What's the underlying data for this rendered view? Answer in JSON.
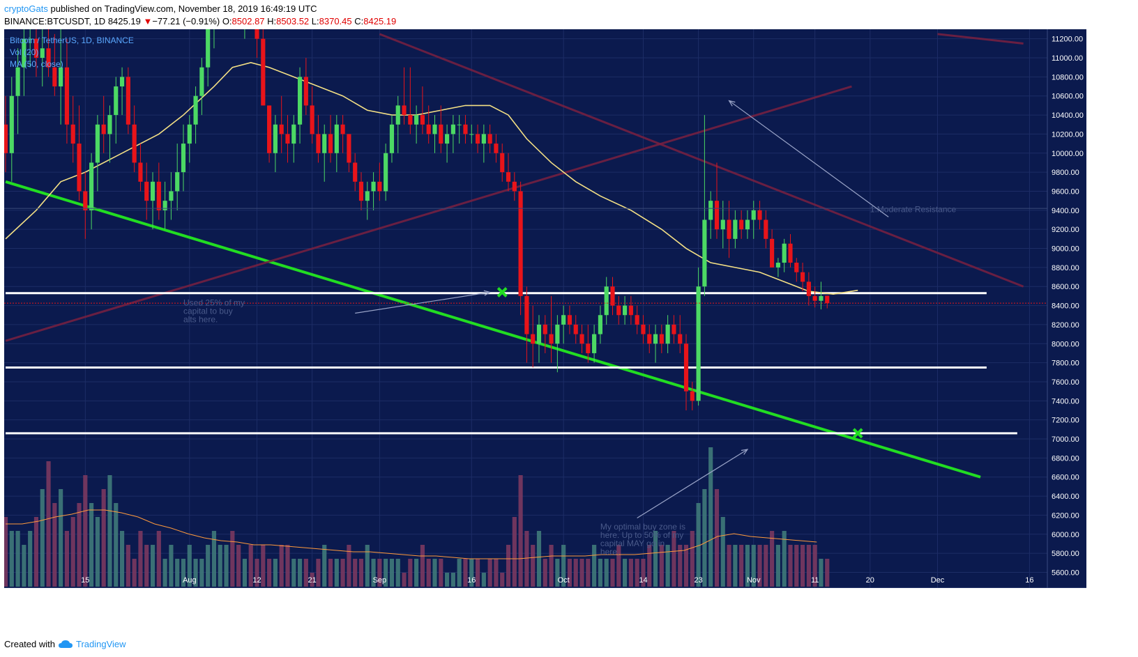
{
  "header": {
    "author": "cryptoGats",
    "published": "published on TradingView.com, November 18, 2019 16:49:19 UTC",
    "symbol": "BINANCE:BTCUSDT, 1D",
    "last": "8425.19",
    "change_arrow": "▼",
    "change": "−77.21 (−0.91%)",
    "o_label": "O:",
    "o_value": "8502.87",
    "h_label": "H:",
    "h_value": "8503.52",
    "l_label": "L:",
    "l_value": "8370.45",
    "c_label": "C:",
    "c_value": "8425.19"
  },
  "legend": {
    "line1": "Bitcoin / TetherUS, 1D, BINANCE",
    "line2": "Vol (20)",
    "line3": "MA (50, close)"
  },
  "footer": {
    "created": "Created with",
    "brand": "TradingView"
  },
  "colors": {
    "background": "#0b1a4e",
    "grid": "#1d2d66",
    "up": "#4cd964",
    "down": "#e8141a",
    "ma": "#f4e085",
    "support_line": "#ffffff",
    "trendline": "#22dd22",
    "resistance_channel": "#7a2040",
    "price_badge": "#e8141a"
  },
  "icons": [
    "tradingview-cloud-icon",
    "cross-marker-icon",
    "arrow-icon"
  ],
  "chart_data": {
    "type": "candlestick",
    "title": "Bitcoin / TetherUS, 1D, BINANCE",
    "y_axis_ticks": [
      5600,
      5800,
      6000,
      6200,
      6400,
      6600,
      6800,
      7000,
      7200,
      7400,
      7600,
      7800,
      8000,
      8200,
      8400,
      8600,
      8800,
      9000,
      9200,
      9400,
      9600,
      9800,
      10000,
      10200,
      10400,
      10600,
      10800,
      11000,
      11200
    ],
    "y_tick_labels": [
      "5600.00",
      "5800.00",
      "6000.00",
      "6200.00",
      "6400.00",
      "6600.00",
      "6800.00",
      "7000.00",
      "7200.00",
      "7400.00",
      "7600.00",
      "7800.00",
      "8000.00",
      "8200.00",
      "8400.00",
      "8600.00",
      "8800.00",
      "9000.00",
      "9200.00",
      "9400.00",
      "9600.00",
      "9800.00",
      "10000.00",
      "10200.00",
      "10400.00",
      "10600.00",
      "10800.00",
      "11000.00",
      "11200.00"
    ],
    "ylim": [
      5450,
      11300
    ],
    "x_axis_labels": [
      {
        "label": "15",
        "day": 14
      },
      {
        "label": "Aug",
        "day": 31
      },
      {
        "label": "12",
        "day": 42
      },
      {
        "label": "21",
        "day": 51
      },
      {
        "label": "Sep",
        "day": 62
      },
      {
        "label": "16",
        "day": 77
      },
      {
        "label": "Oct",
        "day": 92
      },
      {
        "label": "14",
        "day": 105
      },
      {
        "label": "23",
        "day": 114
      },
      {
        "label": "Nov",
        "day": 123
      },
      {
        "label": "11",
        "day": 133
      },
      {
        "label": "20",
        "day": 142
      },
      {
        "label": "Dec",
        "day": 153
      },
      {
        "label": "16",
        "day": 168
      }
    ],
    "xlim": [
      1,
      170
    ],
    "current_price": 8425.19,
    "current_price_label": "8425.19",
    "candles_ohlc": [
      [
        10300,
        10600,
        9800,
        10000
      ],
      [
        10000,
        10800,
        9700,
        10600
      ],
      [
        10600,
        11100,
        10200,
        10900
      ],
      [
        10900,
        11300,
        10600,
        11200
      ],
      [
        11200,
        11300,
        10900,
        11200
      ],
      [
        11200,
        11300,
        10800,
        11000
      ],
      [
        11000,
        11300,
        10700,
        11100
      ],
      [
        11100,
        11300,
        10800,
        10900
      ],
      [
        10900,
        11250,
        10600,
        10700
      ],
      [
        10700,
        11300,
        10300,
        10900
      ],
      [
        10900,
        11200,
        10100,
        10300
      ],
      [
        10300,
        10600,
        9900,
        10100
      ],
      [
        10100,
        10500,
        9500,
        9600
      ],
      [
        9600,
        9800,
        9100,
        9400
      ],
      [
        9400,
        10000,
        9200,
        9900
      ],
      [
        9900,
        10400,
        9600,
        10300
      ],
      [
        10300,
        10600,
        10000,
        10200
      ],
      [
        10200,
        10500,
        9900,
        10400
      ],
      [
        10400,
        10800,
        10100,
        10700
      ],
      [
        10700,
        10900,
        10400,
        10800
      ],
      [
        10800,
        10900,
        10200,
        10300
      ],
      [
        10300,
        10500,
        9800,
        9900
      ],
      [
        9900,
        10100,
        9600,
        9700
      ],
      [
        9700,
        9900,
        9300,
        9500
      ],
      [
        9500,
        9800,
        9200,
        9700
      ],
      [
        9700,
        9900,
        9300,
        9400
      ],
      [
        9400,
        9700,
        9200,
        9500
      ],
      [
        9500,
        9800,
        9300,
        9600
      ],
      [
        9600,
        10100,
        9400,
        9800
      ],
      [
        9800,
        10300,
        9600,
        10100
      ],
      [
        10100,
        10400,
        9900,
        10300
      ],
      [
        10300,
        10700,
        10100,
        10600
      ],
      [
        10600,
        11000,
        10400,
        10900
      ],
      [
        10900,
        11400,
        10700,
        11300
      ],
      [
        11300,
        11900,
        11100,
        11700
      ],
      [
        11700,
        12000,
        11400,
        11800
      ],
      [
        11800,
        12300,
        11500,
        12100
      ],
      [
        12100,
        12300,
        11600,
        11800
      ],
      [
        11800,
        12000,
        11300,
        11500
      ],
      [
        11500,
        11900,
        11200,
        11700
      ],
      [
        11700,
        11900,
        11300,
        11400
      ],
      [
        11400,
        11600,
        11000,
        11200
      ],
      [
        11200,
        11300,
        10500,
        10500
      ],
      [
        10500,
        10500,
        9900,
        10000
      ],
      [
        10000,
        10400,
        9800,
        10300
      ],
      [
        10300,
        10600,
        10000,
        10200
      ],
      [
        10200,
        10400,
        9900,
        10100
      ],
      [
        10100,
        10400,
        9900,
        10300
      ],
      [
        10300,
        10900,
        10100,
        10800
      ],
      [
        10800,
        11000,
        10400,
        10500
      ],
      [
        10500,
        10700,
        10100,
        10200
      ],
      [
        10200,
        10400,
        9900,
        10000
      ],
      [
        10000,
        10300,
        9700,
        10200
      ],
      [
        10200,
        10400,
        9900,
        10000
      ],
      [
        10000,
        10400,
        9800,
        10300
      ],
      [
        10300,
        10400,
        10000,
        10200
      ],
      [
        10200,
        10200,
        9800,
        9900
      ],
      [
        9900,
        10000,
        9600,
        9700
      ],
      [
        9700,
        9800,
        9400,
        9500
      ],
      [
        9500,
        9700,
        9300,
        9600
      ],
      [
        9600,
        9800,
        9400,
        9700
      ],
      [
        9700,
        9900,
        9500,
        9600
      ],
      [
        9600,
        10100,
        9500,
        10000
      ],
      [
        10000,
        10400,
        9900,
        10300
      ],
      [
        10300,
        10600,
        10000,
        10500
      ],
      [
        10500,
        10900,
        10300,
        10400
      ],
      [
        10400,
        10900,
        10200,
        10300
      ],
      [
        10300,
        10500,
        10100,
        10400
      ],
      [
        10400,
        10700,
        10200,
        10300
      ],
      [
        10300,
        10500,
        10100,
        10200
      ],
      [
        10200,
        10400,
        10000,
        10300
      ],
      [
        10300,
        10500,
        10000,
        10100
      ],
      [
        10100,
        10300,
        9900,
        10200
      ],
      [
        10200,
        10400,
        10000,
        10300
      ],
      [
        10300,
        10400,
        10100,
        10300
      ],
      [
        10300,
        10400,
        10100,
        10200
      ],
      [
        10200,
        10300,
        10100,
        10200
      ],
      [
        10200,
        10300,
        10000,
        10100
      ],
      [
        10100,
        10300,
        9900,
        10200
      ],
      [
        10200,
        10300,
        10000,
        10100
      ],
      [
        10100,
        10200,
        9900,
        10000
      ],
      [
        10000,
        10100,
        9700,
        9800
      ],
      [
        9800,
        10000,
        9600,
        9700
      ],
      [
        9700,
        9800,
        9500,
        9600
      ],
      [
        9600,
        9700,
        8300,
        8500
      ],
      [
        8500,
        8600,
        7800,
        8100
      ],
      [
        8100,
        8400,
        7750,
        8000
      ],
      [
        8000,
        8300,
        7800,
        8200
      ],
      [
        8200,
        8300,
        7900,
        8100
      ],
      [
        8100,
        8500,
        7800,
        8000
      ],
      [
        8000,
        8300,
        7700,
        8200
      ],
      [
        8200,
        8400,
        8000,
        8300
      ],
      [
        8300,
        8400,
        8100,
        8200
      ],
      [
        8200,
        8300,
        8000,
        8100
      ],
      [
        8100,
        8200,
        7900,
        8000
      ],
      [
        8000,
        8200,
        7800,
        7900
      ],
      [
        7900,
        8200,
        7800,
        8100
      ],
      [
        8100,
        8400,
        8000,
        8300
      ],
      [
        8300,
        8700,
        8200,
        8600
      ],
      [
        8600,
        8700,
        8300,
        8400
      ],
      [
        8400,
        8500,
        8200,
        8300
      ],
      [
        8300,
        8500,
        8200,
        8400
      ],
      [
        8400,
        8500,
        8200,
        8300
      ],
      [
        8300,
        8400,
        8100,
        8200
      ],
      [
        8200,
        8300,
        8000,
        8100
      ],
      [
        8100,
        8200,
        7900,
        8000
      ],
      [
        8000,
        8200,
        7800,
        8100
      ],
      [
        8100,
        8200,
        7900,
        8000
      ],
      [
        8000,
        8300,
        7900,
        8200
      ],
      [
        8200,
        8300,
        8000,
        8100
      ],
      [
        8100,
        8300,
        7900,
        8000
      ],
      [
        8000,
        8100,
        7300,
        7500
      ],
      [
        7500,
        7600,
        7300,
        7400
      ],
      [
        7400,
        8800,
        7350,
        8600
      ],
      [
        8600,
        10400,
        8500,
        9300
      ],
      [
        9300,
        9600,
        9100,
        9500
      ],
      [
        9500,
        9900,
        9100,
        9200
      ],
      [
        9200,
        9500,
        9000,
        9300
      ],
      [
        9300,
        9500,
        8900,
        9100
      ],
      [
        9100,
        9400,
        9000,
        9300
      ],
      [
        9300,
        9400,
        9100,
        9200
      ],
      [
        9200,
        9400,
        9100,
        9300
      ],
      [
        9300,
        9500,
        9100,
        9400
      ],
      [
        9400,
        9500,
        9200,
        9300
      ],
      [
        9300,
        9400,
        9000,
        9100
      ],
      [
        9100,
        9200,
        8800,
        8800
      ],
      [
        8800,
        8900,
        8700,
        8850
      ],
      [
        8850,
        9100,
        8750,
        9050
      ],
      [
        9050,
        9150,
        8800,
        8850
      ],
      [
        8850,
        8900,
        8650,
        8750
      ],
      [
        8750,
        8850,
        8550,
        8650
      ],
      [
        8650,
        8750,
        8400,
        8500
      ],
      [
        8500,
        8600,
        8380,
        8450
      ],
      [
        8450,
        8650,
        8360,
        8500
      ],
      [
        8502.87,
        8503.52,
        8370.45,
        8425.19
      ]
    ],
    "candle_start_day": 1,
    "ma50": [
      [
        1,
        9100
      ],
      [
        6,
        9400
      ],
      [
        10,
        9700
      ],
      [
        14,
        9800
      ],
      [
        20,
        10000
      ],
      [
        26,
        10200
      ],
      [
        30,
        10400
      ],
      [
        35,
        10700
      ],
      [
        38,
        10900
      ],
      [
        41,
        10950
      ],
      [
        44,
        10900
      ],
      [
        48,
        10800
      ],
      [
        52,
        10700
      ],
      [
        56,
        10600
      ],
      [
        60,
        10450
      ],
      [
        64,
        10400
      ],
      [
        68,
        10400
      ],
      [
        72,
        10450
      ],
      [
        76,
        10500
      ],
      [
        80,
        10500
      ],
      [
        83,
        10400
      ],
      [
        86,
        10150
      ],
      [
        90,
        9900
      ],
      [
        94,
        9700
      ],
      [
        98,
        9550
      ],
      [
        103,
        9400
      ],
      [
        108,
        9200
      ],
      [
        112,
        9000
      ],
      [
        116,
        8850
      ],
      [
        120,
        8800
      ],
      [
        124,
        8750
      ],
      [
        128,
        8650
      ],
      [
        132,
        8550
      ],
      [
        136,
        8520
      ],
      [
        140,
        8560
      ]
    ],
    "volume": {
      "label": "Vol (20)",
      "values": [
        0.5,
        0.4,
        0.4,
        0.3,
        0.4,
        0.5,
        0.7,
        0.9,
        0.6,
        0.7,
        0.4,
        0.5,
        0.6,
        0.8,
        0.6,
        0.5,
        0.7,
        0.8,
        0.6,
        0.4,
        0.3,
        0.2,
        0.4,
        0.3,
        0.3,
        0.4,
        0.2,
        0.3,
        0.2,
        0.2,
        0.3,
        0.2,
        0.2,
        0.3,
        0.4,
        0.3,
        0.3,
        0.4,
        0.3,
        0.2,
        0.3,
        0.2,
        0.3,
        0.2,
        0.2,
        0.3,
        0.3,
        0.2,
        0.2,
        0.2,
        0.1,
        0.2,
        0.3,
        0.2,
        0.2,
        0.2,
        0.3,
        0.2,
        0.2,
        0.3,
        0.2,
        0.2,
        0.2,
        0.2,
        0.2,
        0.1,
        0.2,
        0.2,
        0.3,
        0.2,
        0.2,
        0.2,
        0.1,
        0.1,
        0.2,
        0.2,
        0.2,
        0.2,
        0.1,
        0.2,
        0.2,
        0.1,
        0.3,
        0.5,
        0.8,
        0.4,
        0.3,
        0.4,
        0.2,
        0.3,
        0.2,
        0.3,
        0.2,
        0.2,
        0.2,
        0.2,
        0.3,
        0.2,
        0.2,
        0.2,
        0.3,
        0.2,
        0.2,
        0.2,
        0.2,
        0.3,
        0.4,
        0.3,
        0.3,
        0.4,
        0.3,
        0.3,
        0.4,
        0.6,
        0.7,
        1.0,
        0.7,
        0.5,
        0.3,
        0.3,
        0.3,
        0.3,
        0.3,
        0.3,
        0.3,
        0.4,
        0.3,
        0.4,
        0.3,
        0.3,
        0.3,
        0.3,
        0.3,
        0.2,
        0.2
      ],
      "ma": [
        0.45,
        0.45,
        0.47,
        0.5,
        0.52,
        0.55,
        0.55,
        0.53,
        0.5,
        0.45,
        0.42,
        0.38,
        0.35,
        0.33,
        0.32,
        0.3,
        0.3,
        0.29,
        0.28,
        0.27,
        0.26,
        0.25,
        0.25,
        0.24,
        0.23,
        0.22,
        0.22,
        0.21,
        0.2,
        0.2,
        0.2,
        0.2,
        0.21,
        0.22,
        0.22,
        0.22,
        0.23,
        0.23,
        0.23,
        0.24,
        0.25,
        0.26,
        0.3,
        0.36,
        0.38,
        0.36,
        0.35,
        0.34,
        0.33,
        0.32
      ]
    },
    "horizontal_lines": [
      {
        "name": "support-line-8530",
        "price": 8530,
        "x_start_day": 1,
        "x_end_day": 161
      },
      {
        "name": "support-line-7750",
        "price": 7750,
        "x_start_day": 1,
        "x_end_day": 161
      },
      {
        "name": "support-line-7060",
        "price": 7060,
        "x_start_day": 1,
        "x_end_day": 166
      }
    ],
    "trendlines": [
      {
        "name": "green-descending-trendline",
        "from": {
          "day": 1,
          "price": 9700
        },
        "to": {
          "day": 160,
          "price": 6600
        }
      },
      {
        "name": "red-descending-channel-top",
        "from": {
          "day": 62,
          "price": 11250
        },
        "to": {
          "day": 167,
          "price": 8600
        }
      },
      {
        "name": "red-ascending-line",
        "from": {
          "day": 1,
          "price": 8030
        },
        "to": {
          "day": 139,
          "price": 10700
        }
      },
      {
        "name": "red-upper-right-segment",
        "from": {
          "day": 153,
          "price": 11250
        },
        "to": {
          "day": 167,
          "price": 11150
        }
      }
    ],
    "annotations": [
      {
        "name": "moderate-resistance-label",
        "text": "1.Moderate Resistance"
      },
      {
        "name": "buy-alts-note",
        "text": "Used 25% of my capital to buy alts here."
      },
      {
        "name": "optimal-buy-zone-note",
        "text": "My optimal buy zone is here. Up to 50% of my capital MAY go in here."
      }
    ]
  }
}
